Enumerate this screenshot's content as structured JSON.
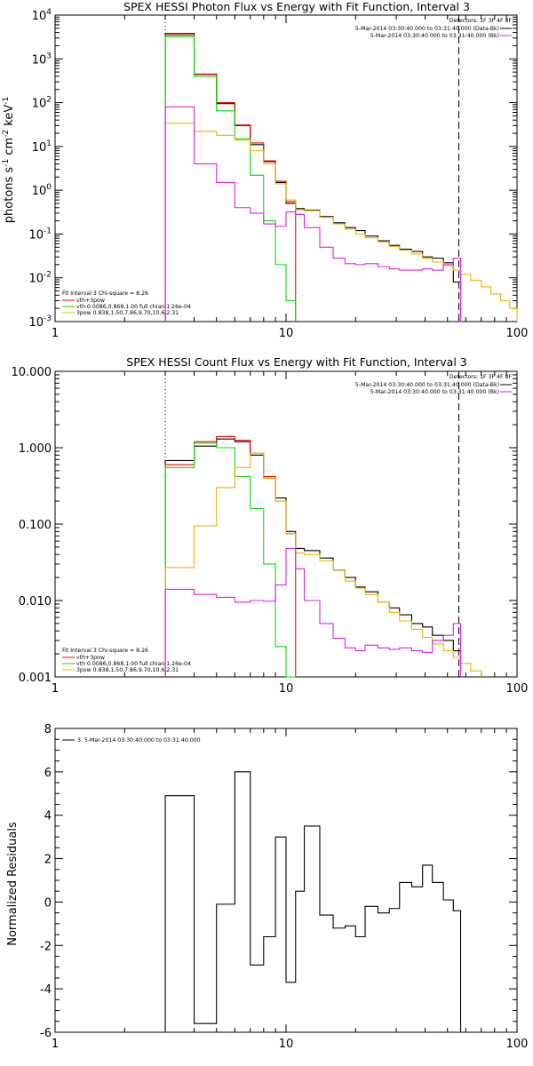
{
  "chart_data": [
    {
      "type": "line",
      "title": "SPEX HESSI Photon Flux vs Energy with Fit Function, Interval 3",
      "ylabel": "photons s",
      "ylabel_sup1": "-1",
      "ylabel_mid": " cm",
      "ylabel_sup2": "-2",
      "ylabel_end": " keV",
      "ylabel_sup3": "-1",
      "x_scale": "log",
      "y_scale": "log",
      "xlim": [
        1,
        100
      ],
      "ylim": [
        0.001,
        10000
      ],
      "x_ticks": [
        {
          "v": 1,
          "label": "1"
        },
        {
          "v": 10,
          "label": "10"
        },
        {
          "v": 100,
          "label": "100"
        }
      ],
      "y_ticks": [
        {
          "v": 0.001,
          "base": "10",
          "exp": "-3"
        },
        {
          "v": 0.01,
          "base": "10",
          "exp": "-2"
        },
        {
          "v": 0.1,
          "base": "10",
          "exp": "-1"
        },
        {
          "v": 1,
          "base": "10",
          "exp": "0"
        },
        {
          "v": 10,
          "base": "10",
          "exp": "1"
        },
        {
          "v": 100,
          "base": "10",
          "exp": "2"
        },
        {
          "v": 1000,
          "base": "10",
          "exp": "3"
        },
        {
          "v": 10000,
          "base": "10",
          "exp": "4"
        }
      ],
      "vlines": [
        {
          "x": 3,
          "style": "dotted"
        },
        {
          "x": 56,
          "style": "dashed"
        }
      ],
      "legend_top_right": {
        "detectors": "Detectors: 1F 3F 4F 8F",
        "entries": [
          {
            "text": "5-Mar-2014 03:30:40.000 to 03:31:40.000 (Data-Bk)",
            "color": "#000000"
          },
          {
            "text": "5-Mar-2014 03:30:40.000 to 03:31:40.000 (Bk)",
            "color": "#e020e0"
          }
        ]
      },
      "legend_bottom_left": {
        "header": "Fit Interval 3   Chi-square = 8.26",
        "entries": [
          {
            "text": "vth+3pow",
            "color": "#ff0000"
          },
          {
            "text": "vth 0.0086,0.868,1.00  full chian 1.26e-04",
            "color": "#00e000"
          },
          {
            "text": "3pow 0.838,1.50,7.86,9.70,10.6,2.31",
            "color": "#e8b800"
          }
        ]
      },
      "edges": [
        3,
        4,
        5,
        6,
        7,
        8,
        9,
        10,
        11,
        12,
        14,
        16,
        18,
        20,
        22,
        25,
        28,
        31,
        35,
        39,
        43,
        48,
        53,
        57,
        63,
        70,
        77,
        85,
        93,
        100
      ],
      "series": [
        {
          "color": "#000000",
          "values": [
            3800,
            450,
            95,
            30,
            11,
            4.5,
            1.5,
            0.5,
            0.38,
            0.35,
            0.25,
            0.18,
            0.14,
            0.12,
            0.09,
            0.07,
            0.055,
            0.045,
            0.04,
            0.03,
            0.028,
            0.022,
            0.008
          ]
        },
        {
          "color": "#ff0000",
          "values": [
            3500,
            440,
            100,
            31,
            12,
            4.7,
            1.6,
            0.55
          ]
        },
        {
          "color": "#00e000",
          "values": [
            3200,
            400,
            65,
            15,
            2.2,
            0.2,
            0.02,
            0.003
          ]
        },
        {
          "color": "#e8b800",
          "values": [
            34,
            22,
            18,
            14,
            8,
            4,
            1.4,
            0.6,
            0.36,
            0.34,
            0.24,
            0.17,
            0.13,
            0.1,
            0.082,
            0.066,
            0.052,
            0.043,
            0.035,
            0.028,
            0.023,
            0.019,
            0.015,
            0.012,
            0.0088,
            0.0062,
            0.0043,
            0.003,
            0.002
          ]
        },
        {
          "color": "#e020e0",
          "values": [
            80,
            4,
            1.5,
            0.4,
            0.3,
            0.17,
            0.15,
            0.32,
            0.28,
            0.14,
            0.05,
            0.028,
            0.021,
            0.02,
            0.021,
            0.018,
            0.016,
            0.015,
            0.015,
            0.016,
            0.015,
            0.02,
            0.028
          ]
        }
      ]
    },
    {
      "type": "line",
      "title": "SPEX HESSI Count Flux vs Energy with Fit Function, Interval 3",
      "x_scale": "log",
      "y_scale": "log",
      "xlim": [
        1,
        100
      ],
      "ylim": [
        0.001,
        10
      ],
      "x_ticks": [
        {
          "v": 1,
          "label": "1"
        },
        {
          "v": 10,
          "label": "10"
        },
        {
          "v": 100,
          "label": "100"
        }
      ],
      "y_ticks": [
        {
          "v": 0.001,
          "label": "0.001"
        },
        {
          "v": 0.01,
          "label": "0.010"
        },
        {
          "v": 0.1,
          "label": "0.100"
        },
        {
          "v": 1,
          "label": "1.000"
        },
        {
          "v": 10,
          "label": "10.000"
        }
      ],
      "vlines": [
        {
          "x": 3,
          "style": "dotted"
        },
        {
          "x": 56,
          "style": "dashed"
        }
      ],
      "legend_top_right": {
        "detectors": "Detectors: 1F 3F 4F 8F",
        "entries": [
          {
            "text": "5-Mar-2014 03:30:40.000 to 03:31:40.000 (Data-Bk)",
            "color": "#000000"
          },
          {
            "text": "5-Mar-2014 03:30:40.000 to 03:31:40.000 (Bk)",
            "color": "#e020e0"
          }
        ]
      },
      "legend_bottom_left": {
        "header": "Fit Interval 3   Chi-square = 8.26",
        "entries": [
          {
            "text": "vth+3pow",
            "color": "#ff0000"
          },
          {
            "text": "vth 0.0086,0.868,1.00  full chian 1.26e-04",
            "color": "#00e000"
          },
          {
            "text": "3pow 0.838,1.50,7.86,9.70,10.6,2.31",
            "color": "#e8b800"
          }
        ]
      },
      "edges": [
        3,
        4,
        5,
        6,
        7,
        8,
        9,
        10,
        11,
        12,
        14,
        16,
        18,
        20,
        22,
        25,
        28,
        31,
        35,
        39,
        43,
        48,
        53,
        57,
        63,
        70,
        77,
        85,
        93,
        100
      ],
      "series": [
        {
          "color": "#000000",
          "values": [
            0.68,
            1.05,
            1.3,
            1.2,
            0.8,
            0.4,
            0.22,
            0.08,
            0.048,
            0.045,
            0.036,
            0.025,
            0.02,
            0.015,
            0.013,
            0.0095,
            0.008,
            0.0065,
            0.005,
            0.0045,
            0.0035,
            0.003,
            0.0022
          ]
        },
        {
          "color": "#ff0000",
          "values": [
            0.6,
            1.2,
            1.4,
            1.25,
            0.85,
            0.42,
            0.2,
            0.075
          ]
        },
        {
          "color": "#00e000",
          "values": [
            0.55,
            1.15,
            1.0,
            0.42,
            0.16,
            0.03,
            0.0025,
            0.001
          ]
        },
        {
          "color": "#e8b800",
          "values": [
            0.027,
            0.095,
            0.3,
            0.55,
            0.85,
            0.4,
            0.2,
            0.075,
            0.042,
            0.04,
            0.033,
            0.025,
            0.018,
            0.0145,
            0.012,
            0.0095,
            0.007,
            0.0054,
            0.0042,
            0.0033,
            0.0027,
            0.0022,
            0.0018,
            0.0015,
            0.0012
          ]
        },
        {
          "color": "#e020e0",
          "values": [
            0.014,
            0.012,
            0.011,
            0.0095,
            0.01,
            0.0098,
            0.016,
            0.048,
            0.026,
            0.01,
            0.005,
            0.0032,
            0.0024,
            0.0022,
            0.0026,
            0.0024,
            0.0023,
            0.0024,
            0.0022,
            0.0021,
            0.003,
            0.0035,
            0.005
          ]
        }
      ]
    },
    {
      "type": "line",
      "ylabel": "Normalized Residuals",
      "x_scale": "log",
      "y_scale": "linear",
      "xlim": [
        1,
        100
      ],
      "ylim": [
        -6,
        8
      ],
      "x_ticks": [
        {
          "v": 1,
          "label": "1"
        },
        {
          "v": 10,
          "label": "10"
        },
        {
          "v": 100,
          "label": "100"
        }
      ],
      "y_ticks": [
        {
          "v": -6,
          "label": "-6"
        },
        {
          "v": -4,
          "label": "-4"
        },
        {
          "v": -2,
          "label": "-2"
        },
        {
          "v": 0,
          "label": "0"
        },
        {
          "v": 2,
          "label": "2"
        },
        {
          "v": 4,
          "label": "4"
        },
        {
          "v": 6,
          "label": "6"
        },
        {
          "v": 8,
          "label": "8"
        }
      ],
      "legend": {
        "text": "3. 5-Mar-2014 03:30:40.000 to 03:31:40.000",
        "color": "#000000"
      },
      "edges": [
        3,
        4,
        5,
        6,
        7,
        8,
        9,
        10,
        11,
        12,
        14,
        16,
        18,
        20,
        22,
        25,
        28,
        31,
        35,
        39,
        43,
        48,
        53,
        57
      ],
      "series": [
        {
          "color": "#000000",
          "values": [
            4.9,
            -5.6,
            -0.1,
            6.0,
            -2.9,
            -1.6,
            3.0,
            -3.7,
            0.5,
            3.5,
            -0.6,
            -1.2,
            -1.1,
            -1.6,
            -0.2,
            -0.5,
            -0.3,
            0.9,
            0.7,
            1.7,
            0.9,
            0.1,
            -0.4
          ]
        }
      ]
    }
  ]
}
